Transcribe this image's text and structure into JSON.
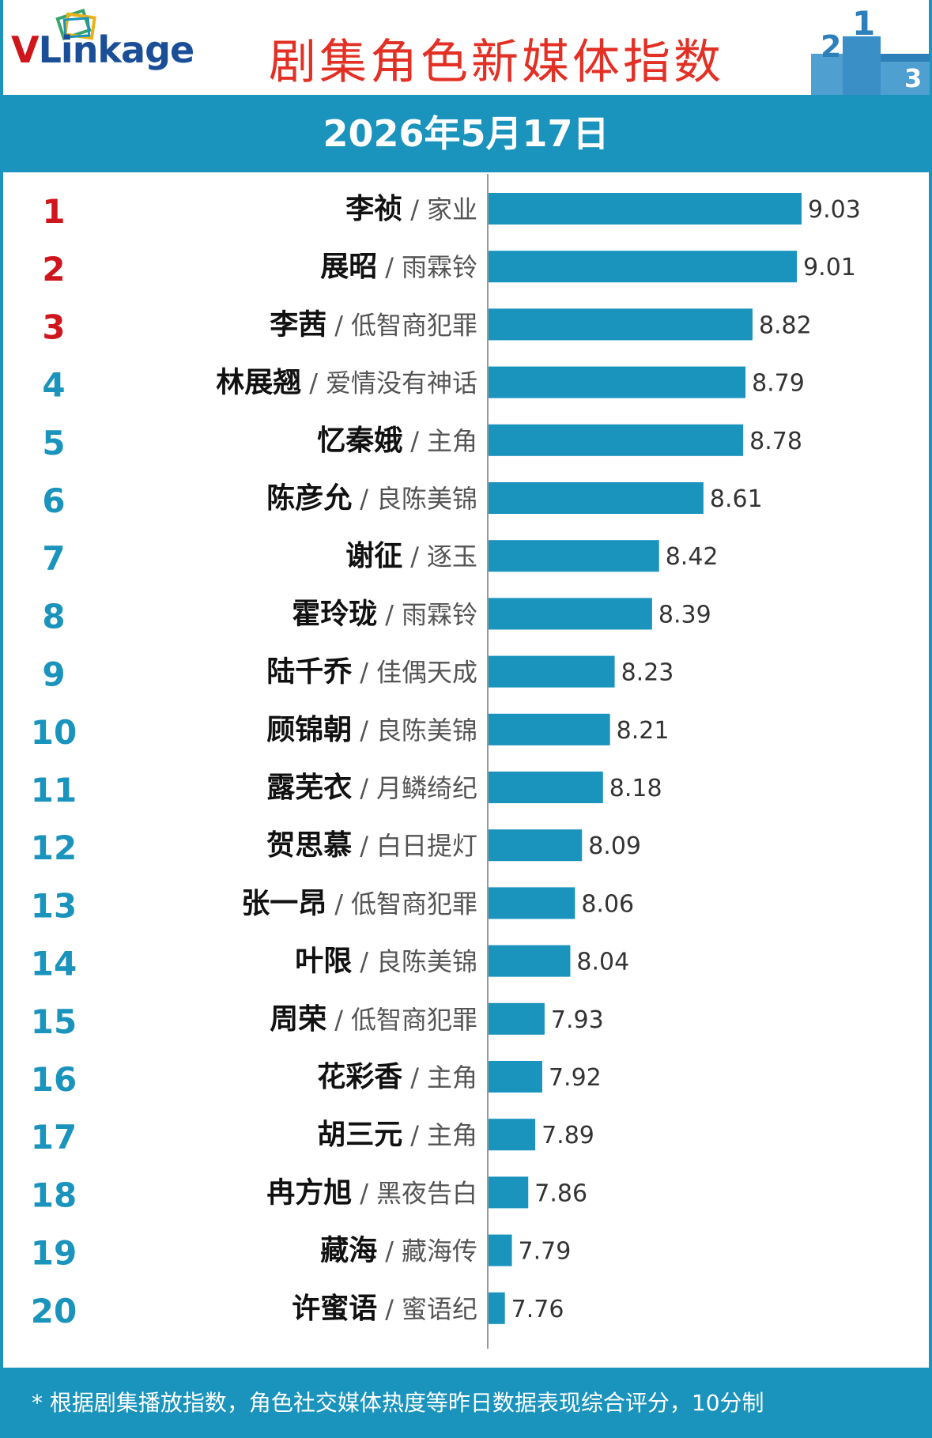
{
  "header": {
    "logo_v": "V",
    "logo_rest": "Linkage",
    "title": "剧集角色新媒体指数",
    "podium_labels": [
      "2",
      "1",
      "3"
    ]
  },
  "date": "2026年5月17日",
  "colors": {
    "accent": "#1a93bd",
    "bar": "#1a93bd",
    "rank_top3": "#d0161d",
    "rank_other": "#1a93bd",
    "title": "#e33025"
  },
  "chart_data": {
    "type": "bar",
    "orientation": "horizontal",
    "categories": [
      {
        "rank": "1",
        "role": "李祯",
        "drama": "家业"
      },
      {
        "rank": "2",
        "role": "展昭",
        "drama": "雨霖铃"
      },
      {
        "rank": "3",
        "role": "李茜",
        "drama": "低智商犯罪"
      },
      {
        "rank": "4",
        "role": "林展翘",
        "drama": "爱情没有神话"
      },
      {
        "rank": "5",
        "role": "忆秦娥",
        "drama": "主角"
      },
      {
        "rank": "6",
        "role": "陈彦允",
        "drama": "良陈美锦"
      },
      {
        "rank": "7",
        "role": "谢征",
        "drama": "逐玉"
      },
      {
        "rank": "8",
        "role": "霍玲珑",
        "drama": "雨霖铃"
      },
      {
        "rank": "9",
        "role": "陆千乔",
        "drama": "佳偶天成"
      },
      {
        "rank": "10",
        "role": "顾锦朝",
        "drama": "良陈美锦"
      },
      {
        "rank": "11",
        "role": "露芜衣",
        "drama": "月鳞绮纪"
      },
      {
        "rank": "12",
        "role": "贺思慕",
        "drama": "白日提灯"
      },
      {
        "rank": "13",
        "role": "张一昂",
        "drama": "低智商犯罪"
      },
      {
        "rank": "14",
        "role": "叶限",
        "drama": "良陈美锦"
      },
      {
        "rank": "15",
        "role": "周荣",
        "drama": "低智商犯罪"
      },
      {
        "rank": "16",
        "role": "花彩香",
        "drama": "主角"
      },
      {
        "rank": "17",
        "role": "胡三元",
        "drama": "主角"
      },
      {
        "rank": "18",
        "role": "冉方旭",
        "drama": "黑夜告白"
      },
      {
        "rank": "19",
        "role": "藏海",
        "drama": "藏海传"
      },
      {
        "rank": "20",
        "role": "许蜜语",
        "drama": "蜜语纪"
      }
    ],
    "values": [
      9.03,
      9.01,
      8.82,
      8.79,
      8.78,
      8.61,
      8.42,
      8.39,
      8.23,
      8.21,
      8.18,
      8.09,
      8.06,
      8.04,
      7.93,
      7.92,
      7.89,
      7.86,
      7.79,
      7.76
    ],
    "value_labels": [
      "9.03",
      "9.01",
      "8.82",
      "8.79",
      "8.78",
      "8.61",
      "8.42",
      "8.39",
      "8.23",
      "8.21",
      "8.18",
      "8.09",
      "8.06",
      "8.04",
      "7.93",
      "7.92",
      "7.89",
      "7.86",
      "7.79",
      "7.76"
    ],
    "separator": "/",
    "xlim": [
      7.69,
      9.03
    ],
    "grid": false,
    "legend": "none"
  },
  "footer": {
    "note": "* 根据剧集播放指数，角色社交媒体热度等昨日数据表现综合评分，10分制"
  }
}
